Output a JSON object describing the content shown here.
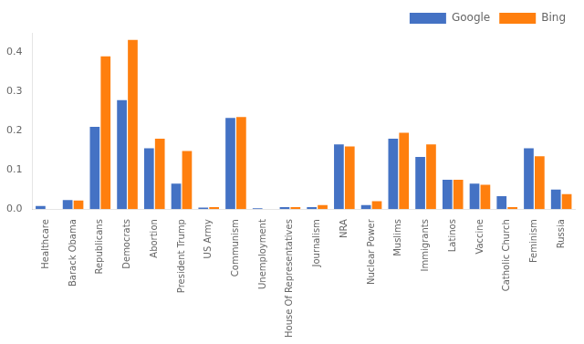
{
  "chart_data": {
    "type": "bar",
    "categories": [
      "Healthcare",
      "Barack Obama",
      "Republicans",
      "Democrats",
      "Abortion",
      "President Trump",
      "US Army",
      "Communism",
      "Unemployment",
      "House Of Representatives",
      "Journalism",
      "NRA",
      "Nuclear Power",
      "Muslims",
      "Immigrants",
      "Latinos",
      "Vaccine",
      "Catholic Church",
      "Feminism",
      "Russia"
    ],
    "series": [
      {
        "name": "Google",
        "color": "#4472c4",
        "values": [
          0.008,
          0.023,
          0.21,
          0.278,
          0.155,
          0.065,
          0.004,
          0.233,
          0.002,
          0.005,
          0.005,
          0.165,
          0.01,
          0.18,
          0.133,
          0.075,
          0.065,
          0.033,
          0.155,
          0.05
        ]
      },
      {
        "name": "Bing",
        "color": "#ff7f0e",
        "values": [
          0.0,
          0.022,
          0.39,
          0.432,
          0.18,
          0.148,
          0.005,
          0.235,
          0.0,
          0.005,
          0.01,
          0.16,
          0.02,
          0.195,
          0.165,
          0.075,
          0.062,
          0.005,
          0.135,
          0.038
        ]
      }
    ],
    "ylim": [
      0,
      0.45
    ],
    "yticks": [
      {
        "value": 0,
        "label": "0.0"
      },
      0.1,
      0.2,
      0.3,
      0.4
    ],
    "grid": false,
    "legend": "upper right"
  }
}
